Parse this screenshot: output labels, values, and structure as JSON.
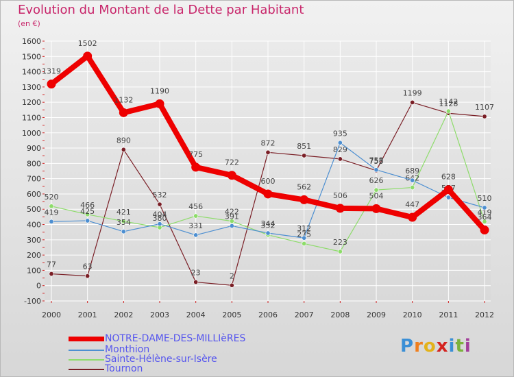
{
  "header": {
    "title": "Evolution du Montant de la Dette par Habitant",
    "subtitle": "(en €)"
  },
  "colors": {
    "title": "#c8256a",
    "legend_text": "#5555ee",
    "axis_text": "#333333",
    "grid": "#ffffff"
  },
  "logo": {
    "text": "Proxiti",
    "letter_colors": [
      "#3a8fd6",
      "#f07f1e",
      "#e3b21a",
      "#d4231f",
      "#3a8fd6",
      "#7bb23c",
      "#a23e9a"
    ]
  },
  "chart_data": {
    "type": "line",
    "title": "Evolution du Montant de la Dette par Habitant",
    "subtitle": "(en €)",
    "xlabel": "",
    "ylabel": "",
    "ylim": [
      -100,
      1600
    ],
    "y_ticks": [
      -100,
      0,
      100,
      200,
      300,
      400,
      500,
      600,
      700,
      800,
      900,
      1000,
      1100,
      1200,
      1300,
      1400,
      1500,
      1600
    ],
    "categories": [
      "2000",
      "2001",
      "2002",
      "2003",
      "2004",
      "2005",
      "2006",
      "2007",
      "2008",
      "2009",
      "2010",
      "2011",
      "2012"
    ],
    "grid": true,
    "legend_position": "bottom-left",
    "series": [
      {
        "name": "Tournon",
        "color": "#7a1f26",
        "values": [
          77,
          63,
          890,
          532,
          23,
          2,
          872,
          851,
          829,
          753,
          1199,
          1128,
          1107
        ]
      },
      {
        "name": "Sainte-Hélène-sur-Isère",
        "color": "#8ddc6a",
        "values": [
          520,
          466,
          421,
          380,
          456,
          422,
          332,
          275,
          223,
          626,
          642,
          1142,
          419
        ]
      },
      {
        "name": "Monthion",
        "color": "#4d8fd1",
        "values": [
          419,
          425,
          354,
          404,
          331,
          391,
          344,
          312,
          935,
          758,
          689,
          577,
          510
        ]
      },
      {
        "name": "NOTRE-DAME-DES-MILLIèRES",
        "color": "#ee0000",
        "values": [
          1319,
          1502,
          1132,
          1190,
          775,
          722,
          600,
          562,
          506,
          504,
          447,
          628,
          364
        ]
      }
    ],
    "legend": [
      "NOTRE-DAME-DES-MILLIèRES",
      "Monthion",
      "Sainte-Hélène-sur-Isère",
      "Tournon"
    ]
  }
}
